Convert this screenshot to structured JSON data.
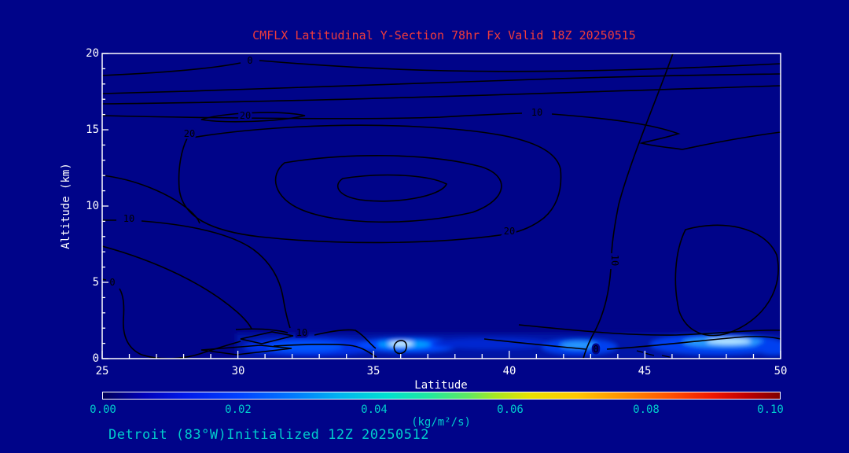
{
  "title": {
    "text": "CMFLX Latitudinal Y-Section 78hr  Fx Valid 18Z 20250515",
    "color": "#f03c3c"
  },
  "footer": {
    "text": "Detroit (83°W)Initialized 12Z 20250512",
    "color": "#00cdcd"
  },
  "axes": {
    "x_label": "Latitude",
    "y_label": "Altitude (km)",
    "x_ticks": [
      "25",
      "30",
      "35",
      "40",
      "45",
      "50"
    ],
    "y_ticks": [
      "20",
      "15",
      "10",
      "5",
      "0"
    ]
  },
  "colorbar": {
    "ticks": [
      "0.00",
      "0.02",
      "0.04",
      "0.06",
      "0.08",
      "0.10"
    ],
    "units": "(kg/m²/s)",
    "tick_color": "#00cdcd"
  },
  "colors": {
    "background": "#000489",
    "axis": "#ffffff",
    "title": "#f03c3c",
    "annotation": "#00cdcd",
    "contour": "#000000"
  },
  "chart_data": {
    "type": "contour",
    "title": "CMFLX Latitudinal Y-Section 78hr  Fx Valid 18Z 20250515",
    "xlabel": "Latitude",
    "ylabel": "Altitude (km)",
    "xlim": [
      25,
      50
    ],
    "ylim": [
      0,
      20
    ],
    "x_ticks": [
      25,
      30,
      35,
      40,
      45,
      50
    ],
    "y_ticks": [
      0,
      5,
      10,
      15,
      20
    ],
    "grid": false,
    "contours": {
      "color": "#000000",
      "interval": 10,
      "labeled_values": [
        0,
        10,
        20
      ],
      "labels": [
        {
          "value": "0",
          "lat": 30.4,
          "alt_km": 19.5
        },
        {
          "value": "10",
          "lat": 41.0,
          "alt_km": 16.1
        },
        {
          "value": "20",
          "lat": 30.3,
          "alt_km": 15.9
        },
        {
          "value": "20",
          "lat": 28.2,
          "alt_km": 14.7
        },
        {
          "value": "20",
          "lat": 40.0,
          "alt_km": 8.3
        },
        {
          "value": "10",
          "lat": 26.0,
          "alt_km": 9.1
        },
        {
          "value": "0",
          "lat": 25.4,
          "alt_km": 4.9
        },
        {
          "value": "10",
          "lat": 32.4,
          "alt_km": 1.6
        },
        {
          "value": "0",
          "lat": 43.2,
          "alt_km": 0.6
        },
        {
          "value": "10",
          "lat": 43.8,
          "alt_km": 6.5
        }
      ],
      "description": "Closed 20-contour lens centered near lat 36, 12 km with nested inner maxima; 0 and 10 contours near 17-19.5 km aloft; contours descend toward the surface below 2 km"
    },
    "shading": {
      "variable": "CMFLX",
      "units": "kg/m²/s",
      "colorbar_min": 0.0,
      "colorbar_max": 0.1,
      "colorbar_ticks": [
        0.0,
        0.02,
        0.04,
        0.06,
        0.08,
        0.1
      ],
      "colorbar_style": "dark blue to blue, cyan, green, yellow, orange, red, dark red",
      "near_surface_maxima": [
        {
          "lat": 32.5,
          "alt_km": 0.5,
          "value": 0.015
        },
        {
          "lat": 36.1,
          "alt_km": 0.6,
          "value": 0.04
        },
        {
          "lat": 42.6,
          "alt_km": 0.5,
          "value": 0.025
        },
        {
          "lat": 47.8,
          "alt_km": 0.6,
          "value": 0.035
        }
      ]
    }
  }
}
